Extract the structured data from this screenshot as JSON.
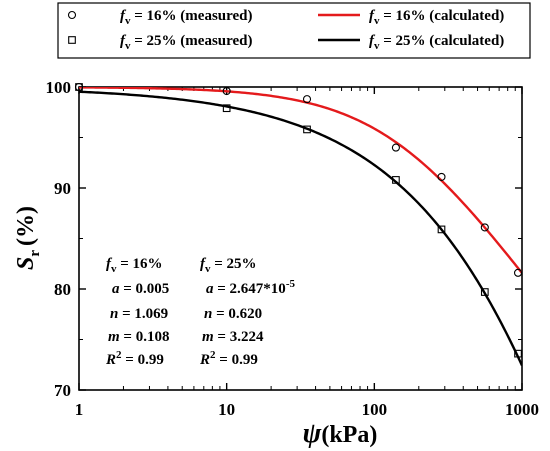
{
  "chart_data": {
    "type": "scatter",
    "x_scale": "log",
    "xlim": [
      1,
      1000
    ],
    "ylim": [
      70,
      100
    ],
    "xlabel": {
      "symbol": "ψ",
      "unit": "(kPa)"
    },
    "ylabel": {
      "symbol": "S",
      "subscript": "r",
      "unit": "(%)"
    },
    "x_ticks": [
      1,
      10,
      100,
      1000
    ],
    "x_tick_labels": [
      "1",
      "10",
      "100",
      "1000"
    ],
    "y_ticks": [
      70,
      80,
      90,
      100
    ],
    "y_tick_labels": [
      "70",
      "80",
      "90",
      "100"
    ],
    "legend_placement": "top",
    "series": [
      {
        "name": "f_v = 16% (measured)",
        "legend": {
          "prefix": "f",
          "sub": "v",
          "text": " = 16% (measured)"
        },
        "marker": "circle",
        "color": "#000000",
        "x": [
          1,
          10,
          35,
          140,
          285,
          560,
          940
        ],
        "y": [
          100,
          99.6,
          98.8,
          94,
          91.1,
          86.1,
          81.6
        ]
      },
      {
        "name": "f_v = 25% (measured)",
        "legend": {
          "prefix": "f",
          "sub": "v",
          "text": " = 25% (measured)"
        },
        "marker": "square",
        "color": "#000000",
        "x": [
          1,
          10,
          35,
          140,
          285,
          560,
          940
        ],
        "y": [
          100,
          97.9,
          95.8,
          90.8,
          85.9,
          79.7,
          73.6
        ]
      },
      {
        "name": "f_v = 16% (calculated)",
        "legend": {
          "prefix": "f",
          "sub": "v",
          "text": " = 16% (calculated)"
        },
        "marker": "line",
        "color": "#e41a1c",
        "params": {
          "a": 0.005,
          "n": 1.069,
          "m": 0.108
        }
      },
      {
        "name": "f_v = 25% (calculated)",
        "legend": {
          "prefix": "f",
          "sub": "v",
          "text": " = 25% (calculated)"
        },
        "marker": "line",
        "color": "#000000",
        "params": {
          "a": 2.647e-05,
          "n": 0.62,
          "m": 3.224
        }
      }
    ],
    "annotations": [
      {
        "header": {
          "prefix": "f",
          "sub": "v",
          "text": " = 16%"
        },
        "a": "0.005",
        "n": "1.069",
        "m": "0.108",
        "r2": "0.99"
      },
      {
        "header": {
          "prefix": "f",
          "sub": "v",
          "text": " = 25%"
        },
        "a_base": "2.647*10",
        "a_exp": "-5",
        "n": "0.620",
        "m": "3.224",
        "r2": "0.99"
      }
    ],
    "ann_labels": {
      "a": "a",
      "n": "n",
      "m": "m",
      "r": "R",
      "r_sup": "2",
      "eq": " = "
    }
  }
}
